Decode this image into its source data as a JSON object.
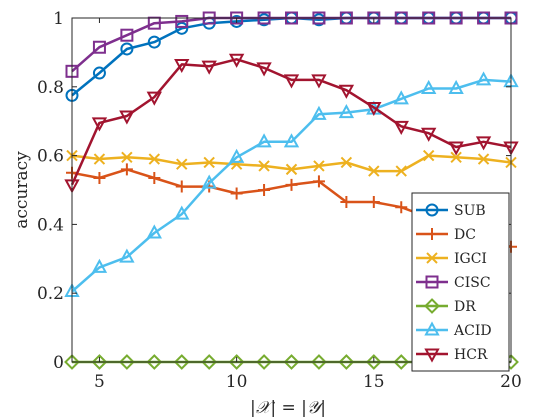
{
  "chart_data": {
    "type": "line",
    "title": "",
    "xlabel": "|𝒳| = |𝒴|",
    "ylabel": "accuracy",
    "xlim": [
      4,
      20
    ],
    "ylim": [
      0,
      1
    ],
    "xticks": [
      "5",
      "10",
      "15",
      "20"
    ],
    "yticks": [
      "0",
      "0.2",
      "0.4",
      "0.6",
      "0.8",
      "1"
    ],
    "grid": false,
    "legend_position": "lower-right",
    "x": [
      4,
      5,
      6,
      7,
      8,
      9,
      10,
      11,
      12,
      13,
      14,
      15,
      16,
      17,
      18,
      19,
      20
    ],
    "series": [
      {
        "name": "SUB",
        "color": "#0072BD",
        "marker": "circle",
        "values": [
          0.775,
          0.84,
          0.91,
          0.93,
          0.97,
          0.985,
          0.99,
          0.995,
          1,
          0.995,
          1,
          1,
          1,
          1,
          1,
          1,
          1
        ]
      },
      {
        "name": "DC",
        "color": "#D95319",
        "marker": "plus",
        "values": [
          0.55,
          0.535,
          0.56,
          0.535,
          0.51,
          0.51,
          0.49,
          0.5,
          0.515,
          0.525,
          0.465,
          0.465,
          0.45,
          0.42,
          0.39,
          0.36,
          0.335
        ]
      },
      {
        "name": "IGCI",
        "color": "#EDB120",
        "marker": "x",
        "values": [
          0.6,
          0.59,
          0.595,
          0.59,
          0.575,
          0.58,
          0.575,
          0.57,
          0.56,
          0.57,
          0.58,
          0.555,
          0.555,
          0.6,
          0.595,
          0.59,
          0.58
        ]
      },
      {
        "name": "CISC",
        "color": "#7E2F8E",
        "marker": "square",
        "values": [
          0.845,
          0.915,
          0.95,
          0.985,
          0.99,
          1,
          1,
          1,
          1,
          1,
          1,
          1,
          1,
          1,
          1,
          1,
          1
        ]
      },
      {
        "name": "DR",
        "color": "#77AC30",
        "marker": "diamond",
        "values": [
          0,
          0,
          0,
          0,
          0,
          0,
          0,
          0,
          0,
          0,
          0,
          0,
          0,
          0,
          0,
          0,
          0
        ]
      },
      {
        "name": "ACID",
        "color": "#4DBEEE",
        "marker": "triangle-up",
        "values": [
          0.205,
          0.275,
          0.305,
          0.375,
          0.43,
          0.52,
          0.595,
          0.64,
          0.64,
          0.72,
          0.725,
          0.735,
          0.765,
          0.795,
          0.795,
          0.82,
          0.815
        ]
      },
      {
        "name": "HCR",
        "color": "#A2142F",
        "marker": "triangle-down",
        "values": [
          0.515,
          0.695,
          0.715,
          0.77,
          0.865,
          0.86,
          0.88,
          0.855,
          0.82,
          0.82,
          0.79,
          0.74,
          0.685,
          0.665,
          0.625,
          0.64,
          0.625
        ]
      }
    ]
  }
}
